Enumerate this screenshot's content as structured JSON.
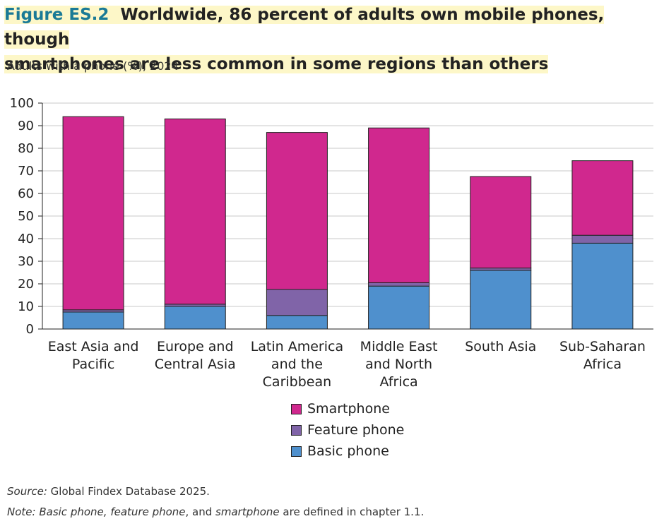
{
  "figure": {
    "label": "Figure ES.2",
    "title_line1": "Worldwide, 86 percent of adults own mobile phones, though",
    "title_line2": "smartphones are less common in some regions than others",
    "subtitle": "Adults with a phone (%), 2024"
  },
  "chart_data": {
    "type": "bar",
    "stacked": true,
    "categories": [
      [
        "East Asia and",
        "Pacific"
      ],
      [
        "Europe and",
        "Central Asia"
      ],
      [
        "Latin America",
        "and the",
        "Caribbean"
      ],
      [
        "Middle East",
        "and North",
        "Africa"
      ],
      [
        "South Asia"
      ],
      [
        "Sub-Saharan",
        "Africa"
      ]
    ],
    "series": [
      {
        "name": "Basic phone",
        "color": "#4f90cd",
        "values": [
          7.5,
          10,
          6,
          19,
          26,
          38
        ]
      },
      {
        "name": "Feature phone",
        "color": "#8064a8",
        "values": [
          1,
          1,
          11.5,
          1.5,
          1,
          3.5
        ]
      },
      {
        "name": "Smartphone",
        "color": "#d0288e",
        "values": [
          85.5,
          82,
          69.5,
          68.5,
          40.5,
          33
        ]
      }
    ],
    "totals": [
      94,
      93,
      87,
      89,
      67.5,
      74.5
    ],
    "ylim": [
      0,
      100
    ],
    "yticks": [
      0,
      10,
      20,
      30,
      40,
      50,
      60,
      70,
      80,
      90,
      100
    ],
    "grid": true,
    "legend_order": [
      "Smartphone",
      "Feature phone",
      "Basic phone"
    ]
  },
  "source": {
    "label": "Source:",
    "text": " Global Findex Database 2025."
  },
  "note": {
    "label": "Note:",
    "t1": "Basic phone",
    "t2": ", ",
    "t3": "feature phone",
    "t4": ", and ",
    "t5": "smartphone",
    "t6": " are defined in chapter 1.1."
  }
}
